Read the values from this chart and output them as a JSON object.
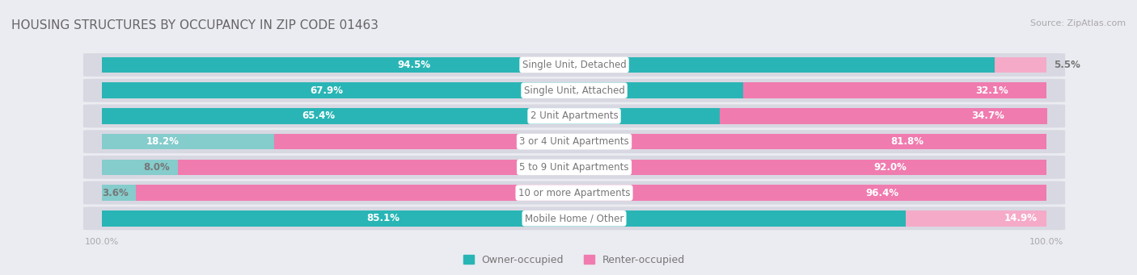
{
  "title": "HOUSING STRUCTURES BY OCCUPANCY IN ZIP CODE 01463",
  "source": "Source: ZipAtlas.com",
  "categories": [
    "Single Unit, Detached",
    "Single Unit, Attached",
    "2 Unit Apartments",
    "3 or 4 Unit Apartments",
    "5 to 9 Unit Apartments",
    "10 or more Apartments",
    "Mobile Home / Other"
  ],
  "owner_pct": [
    94.5,
    67.9,
    65.4,
    18.2,
    8.0,
    3.6,
    85.1
  ],
  "renter_pct": [
    5.5,
    32.1,
    34.7,
    81.8,
    92.0,
    96.4,
    14.9
  ],
  "owner_color_dark": "#29b5b5",
  "owner_color_light": "#85cccc",
  "renter_color_dark": "#f07baf",
  "renter_color_light": "#f5aac8",
  "bg_color": "#ebebf2",
  "row_bg": "#d8d8e2",
  "title_color": "#666666",
  "text_white": "#ffffff",
  "text_dark": "#777777",
  "axis_label_color": "#aaaaaa",
  "bar_height": 0.62,
  "label_fontsize": 8.5,
  "title_fontsize": 11,
  "source_fontsize": 8,
  "legend_fontsize": 9,
  "axis_fontsize": 8,
  "dark_owner_threshold": 0.25,
  "dark_renter_threshold": 0.25
}
